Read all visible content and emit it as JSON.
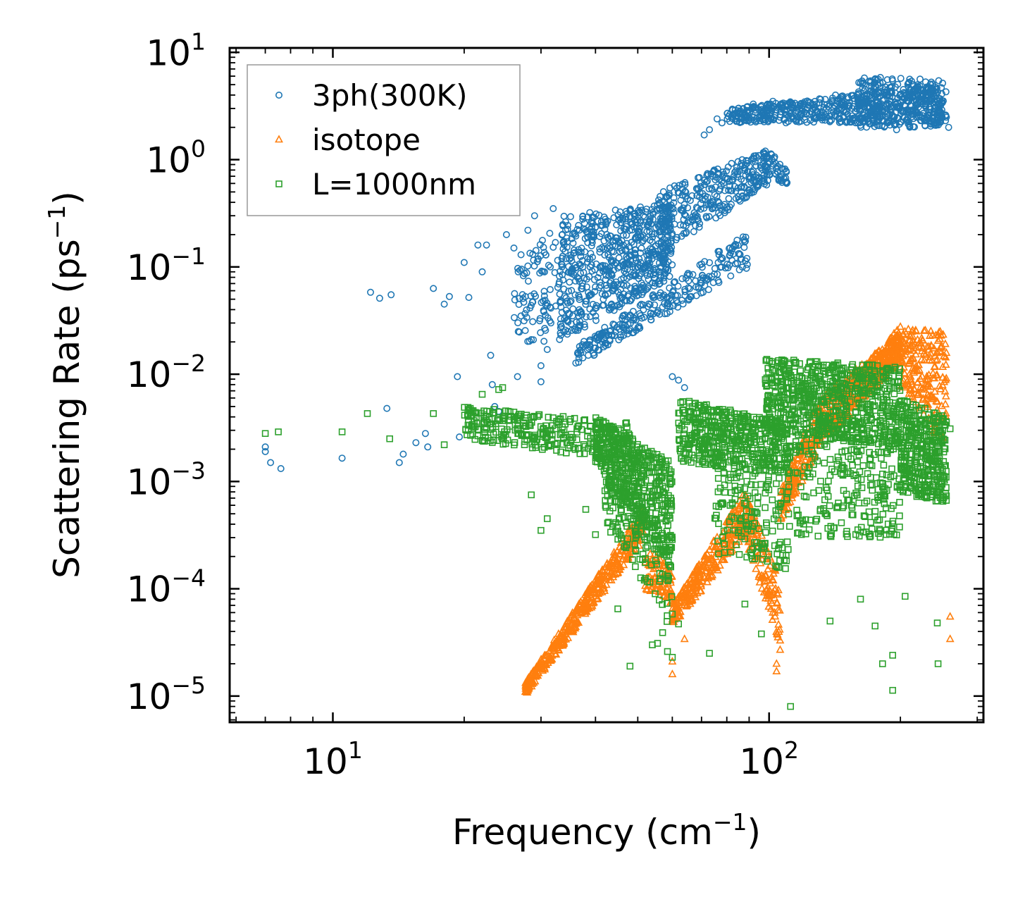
{
  "chart_data": {
    "type": "scatter",
    "title": "",
    "xlabel": "Frequency (cm",
    "xlabel_exp": "−1",
    "xlabel_tail": ")",
    "ylabel": "Scattering Rate (ps",
    "ylabel_exp": "−1",
    "ylabel_tail": ")",
    "xscale": "log",
    "yscale": "log",
    "xlim": [
      5.8,
      310
    ],
    "ylim": [
      5.7e-06,
      11
    ],
    "x_ticks": [
      {
        "value": 10,
        "base": "10",
        "exp": "1"
      },
      {
        "value": 100,
        "base": "10",
        "exp": "2"
      }
    ],
    "y_ticks": [
      {
        "value": 10,
        "base": "10",
        "exp": "1"
      },
      {
        "value": 1,
        "base": "10",
        "exp": "0"
      },
      {
        "value": 0.1,
        "base": "10",
        "exp": "−1"
      },
      {
        "value": 0.01,
        "base": "10",
        "exp": "−2"
      },
      {
        "value": 0.001,
        "base": "10",
        "exp": "−3"
      },
      {
        "value": 0.0001,
        "base": "10",
        "exp": "−4"
      },
      {
        "value": 1e-05,
        "base": "10",
        "exp": "−5"
      }
    ],
    "legend_position": "top-left",
    "series": [
      {
        "name": "3ph(300K)",
        "marker": "circle",
        "color": "#1f77b4",
        "points": [
          [
            7.0,
            0.0021
          ],
          [
            7.0,
            0.0019
          ],
          [
            7.2,
            0.0015
          ],
          [
            7.6,
            0.00132
          ],
          [
            10.5,
            0.00165
          ],
          [
            12.2,
            0.058
          ],
          [
            12.8,
            0.051
          ],
          [
            13.3,
            0.0048
          ],
          [
            13.6,
            0.055
          ],
          [
            14.2,
            0.0015
          ],
          [
            14.5,
            0.0018
          ],
          [
            15.5,
            0.0023
          ],
          [
            16.3,
            0.0028
          ],
          [
            16.5,
            0.0021
          ],
          [
            17.0,
            0.063
          ],
          [
            18.0,
            0.045
          ],
          [
            18.5,
            0.053
          ],
          [
            19.3,
            0.0095
          ],
          [
            19.5,
            0.0026
          ],
          [
            20.0,
            0.11
          ],
          [
            20.5,
            0.052
          ],
          [
            21.5,
            0.16
          ],
          [
            22.0,
            0.09
          ],
          [
            22.5,
            0.16
          ],
          [
            23.0,
            0.015
          ],
          [
            23.5,
            0.005
          ],
          [
            23.2,
            0.008
          ],
          [
            24.0,
            0.0045
          ],
          [
            25.0,
            0.2
          ],
          [
            26.0,
            0.15
          ],
          [
            26.5,
            0.0095
          ],
          [
            27.0,
            0.13
          ],
          [
            28.0,
            0.22
          ],
          [
            28.5,
            0.021
          ],
          [
            29.0,
            0.3
          ],
          [
            30.0,
            0.012
          ],
          [
            30.0,
            0.0085
          ],
          [
            31.0,
            0.017
          ],
          [
            32.0,
            0.35
          ],
          [
            60.0,
            0.0095
          ],
          [
            62.0,
            0.0088
          ],
          [
            64.0,
            0.0075
          ],
          [
            68.0,
            0.065
          ],
          [
            71.0,
            1.7
          ],
          [
            73.0,
            1.9
          ],
          [
            76.0,
            2.4
          ],
          [
            78.0,
            2.2
          ],
          [
            85.0,
            3.0
          ],
          [
            92.0,
            3.3
          ],
          [
            102.0,
            3.5
          ],
          [
            112.0,
            2.9
          ],
          [
            122.0,
            2.7
          ],
          [
            132.0,
            2.6
          ],
          [
            142.0,
            4.0
          ],
          [
            155.0,
            3.0
          ],
          [
            162.0,
            5.2
          ],
          [
            168.0,
            3.0
          ],
          [
            178.0,
            5.6
          ],
          [
            190.0,
            2.3
          ],
          [
            196.0,
            1.9
          ],
          [
            214.0,
            5.0
          ],
          [
            228.0,
            3.2
          ],
          [
            238.0,
            2.3
          ],
          [
            258.0,
            2.0
          ]
        ],
        "bands": [
          {
            "x0": 26.0,
            "x1": 33.0,
            "y_low": [
              0.02,
              0.02
            ],
            "y_high": [
              0.1,
              0.25
            ],
            "n": 90
          },
          {
            "x0": 33.0,
            "x1": 60.0,
            "y_low": [
              0.02,
              0.08
            ],
            "y_high": [
              0.3,
              0.4
            ],
            "n": 650
          },
          {
            "x0": 36.0,
            "x1": 90.0,
            "y_low": [
              0.012,
              0.1
            ],
            "y_high": [
              0.018,
              0.22
            ],
            "n": 260
          },
          {
            "x0": 55.0,
            "x1": 100.0,
            "y_low": [
              0.12,
              0.6
            ],
            "y_high": [
              0.5,
              1.25
            ],
            "n": 320
          },
          {
            "x0": 100.0,
            "x1": 110.0,
            "y_low": [
              0.6,
              0.6
            ],
            "y_high": [
              1.25,
              0.8
            ],
            "n": 40
          },
          {
            "x0": 80.0,
            "x1": 255.0,
            "y_low": [
              2.2,
              2.2
            ],
            "y_high": [
              3.0,
              5.0
            ],
            "n": 520
          },
          {
            "x0": 160.0,
            "x1": 250.0,
            "y_low": [
              2.0,
              2.0
            ],
            "y_high": [
              6.0,
              5.5
            ],
            "n": 320
          }
        ]
      },
      {
        "name": "isotope",
        "marker": "triangle",
        "color": "#ff7f0e",
        "points": [
          [
            60.0,
            2.1e-05
          ],
          [
            60.0,
            1.6e-05
          ],
          [
            64.0,
            3.4e-05
          ],
          [
            104.0,
            1.7e-05
          ],
          [
            104.0,
            2e-05
          ],
          [
            106.0,
            2.7e-05
          ],
          [
            106.0,
            3.3e-05
          ],
          [
            260.0,
            5.5e-05
          ],
          [
            260.0,
            3.4e-05
          ]
        ],
        "bands": [
          {
            "x0": 27.5,
            "x1": 52.0,
            "y_low": [
              1e-05,
              0.0003
            ],
            "y_high": [
              1.3e-05,
              0.0006
            ],
            "n": 420
          },
          {
            "x0": 52.0,
            "x1": 60.0,
            "y_low": [
              0.0001,
              7e-05
            ],
            "y_high": [
              0.00025,
              0.00015
            ],
            "n": 90
          },
          {
            "x0": 60.0,
            "x1": 88.0,
            "y_low": [
              4.5e-05,
              0.0003
            ],
            "y_high": [
              7e-05,
              0.0008
            ],
            "n": 280
          },
          {
            "x0": 88.0,
            "x1": 106.0,
            "y_low": [
              0.0003,
              3e-05
            ],
            "y_high": [
              0.0008,
              0.00012
            ],
            "n": 140
          },
          {
            "x0": 106.0,
            "x1": 130.0,
            "y_low": [
              0.0004,
              0.002
            ],
            "y_high": [
              0.0008,
              0.006
            ],
            "n": 160
          },
          {
            "x0": 130.0,
            "x1": 165.0,
            "y_low": [
              0.002,
              0.006
            ],
            "y_high": [
              0.006,
              0.013
            ],
            "n": 200
          },
          {
            "x0": 165.0,
            "x1": 200.0,
            "y_low": [
              0.006,
              0.013
            ],
            "y_high": [
              0.012,
              0.028
            ],
            "n": 260
          },
          {
            "x0": 200.0,
            "x1": 255.0,
            "y_low": [
              0.008,
              0.002
            ],
            "y_high": [
              0.028,
              0.025
            ],
            "n": 220
          }
        ]
      },
      {
        "name": "L=1000nm",
        "marker": "square",
        "color": "#2ca02c",
        "points": [
          [
            7.0,
            0.0028
          ],
          [
            7.5,
            0.0029
          ],
          [
            10.5,
            0.0029
          ],
          [
            12.0,
            0.0043
          ],
          [
            13.5,
            0.0025
          ],
          [
            17.0,
            0.0043
          ],
          [
            18.0,
            0.0022
          ],
          [
            20.5,
            0.0047
          ],
          [
            22.0,
            0.0065
          ],
          [
            24.0,
            0.0072
          ],
          [
            24.5,
            0.0075
          ],
          [
            26.0,
            0.0038
          ],
          [
            27.5,
            0.0022
          ],
          [
            28.5,
            0.00075
          ],
          [
            30.0,
            0.00035
          ],
          [
            31.0,
            0.00045
          ],
          [
            38.0,
            0.00055
          ],
          [
            40.0,
            0.00032
          ],
          [
            45.0,
            6.5e-05
          ],
          [
            48.0,
            1.9e-05
          ],
          [
            54.0,
            3e-05
          ],
          [
            55.5,
            3.1e-05
          ],
          [
            57.0,
            3.9e-05
          ],
          [
            58.5,
            2.6e-05
          ],
          [
            60.0,
            2.3e-05
          ],
          [
            62.0,
            4.7e-05
          ],
          [
            73.0,
            2.5e-05
          ],
          [
            88.0,
            7.2e-05
          ],
          [
            96.0,
            3.8e-05
          ],
          [
            112.0,
            8e-06
          ],
          [
            138.0,
            5e-05
          ],
          [
            162.0,
            8e-05
          ],
          [
            175.0,
            4.5e-05
          ],
          [
            182.0,
            2e-05
          ],
          [
            192.0,
            2.4e-05
          ],
          [
            192.0,
            1.13e-05
          ],
          [
            205.0,
            8.5e-05
          ],
          [
            243.0,
            4.8e-05
          ],
          [
            244.0,
            2e-05
          ],
          [
            260.0,
            0.0031
          ]
        ],
        "bands": [
          {
            "x0": 20.0,
            "x1": 48.0,
            "y_low": [
              0.0025,
              0.0015
            ],
            "y_high": [
              0.005,
              0.0035
            ],
            "n": 300
          },
          {
            "x0": 40.0,
            "x1": 60.0,
            "y_low": [
              0.0015,
              0.00015
            ],
            "y_high": [
              0.004,
              0.0015
            ],
            "n": 500
          },
          {
            "x0": 42.0,
            "x1": 60.0,
            "y_low": [
              0.0004,
              4e-05
            ],
            "y_high": [
              0.0012,
              0.0004
            ],
            "n": 140
          },
          {
            "x0": 62.0,
            "x1": 112.0,
            "y_low": [
              0.0015,
              0.0012
            ],
            "y_high": [
              0.006,
              0.0035
            ],
            "n": 520
          },
          {
            "x0": 75.0,
            "x1": 112.0,
            "y_low": [
              0.0002,
              0.00015
            ],
            "y_high": [
              0.0015,
              0.0012
            ],
            "n": 160
          },
          {
            "x0": 98.0,
            "x1": 200.0,
            "y_low": [
              0.003,
              0.002
            ],
            "y_high": [
              0.014,
              0.012
            ],
            "n": 720
          },
          {
            "x0": 115.0,
            "x1": 200.0,
            "y_low": [
              0.0003,
              0.0003
            ],
            "y_high": [
              0.003,
              0.003
            ],
            "n": 260
          },
          {
            "x0": 200.0,
            "x1": 255.0,
            "y_low": [
              0.0008,
              0.0006
            ],
            "y_high": [
              0.006,
              0.004
            ],
            "n": 380
          }
        ]
      }
    ]
  }
}
